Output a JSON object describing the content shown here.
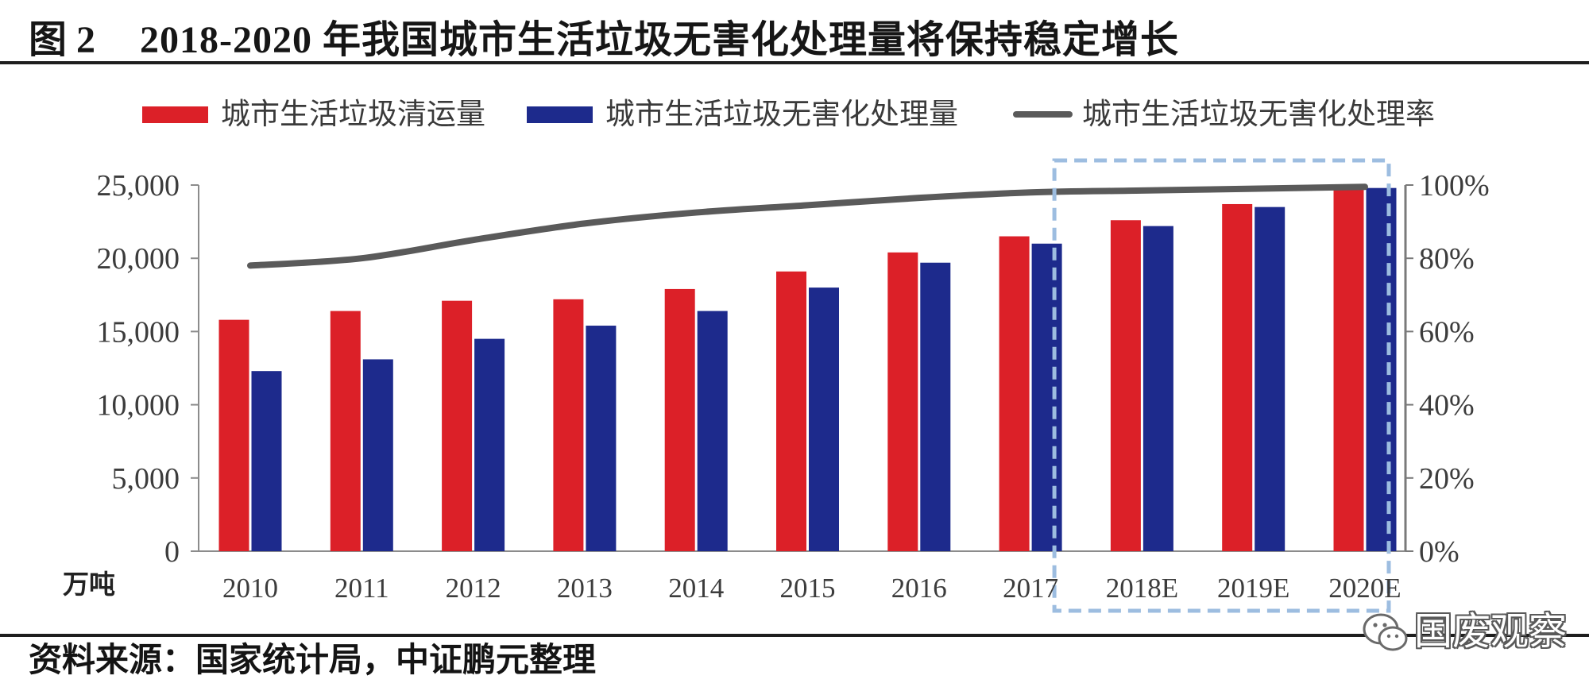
{
  "figure_label": "图 2",
  "source": "资料来源：国家统计局，中证鹏元整理",
  "watermark": "国废观察",
  "watermark_icon": "wechat-icon",
  "colors": {
    "highlight_box": "#9dbde0",
    "rules": "#1e1e1e",
    "axis": "#8c8c8c"
  },
  "chart_data": {
    "type": "bar",
    "title": "2018-2020 年我国城市生活垃圾无害化处理量将保持稳定增长",
    "categories": [
      "2010",
      "2011",
      "2012",
      "2013",
      "2014",
      "2015",
      "2016",
      "2017",
      "2018E",
      "2019E",
      "2020E"
    ],
    "series": [
      {
        "name": "城市生活垃圾清运量",
        "type": "bar",
        "axis": "left",
        "color": "#dc2028",
        "values": [
          15800,
          16400,
          17100,
          17200,
          17900,
          19100,
          20400,
          21500,
          22600,
          23700,
          24900
        ]
      },
      {
        "name": "城市生活垃圾无害化处理量",
        "type": "bar",
        "axis": "left",
        "color": "#1d2a8c",
        "values": [
          12300,
          13100,
          14500,
          15400,
          16400,
          18000,
          19700,
          21000,
          22200,
          23500,
          24800
        ]
      },
      {
        "name": "城市生活垃圾无害化处理率",
        "type": "line",
        "axis": "right",
        "color": "#5a5a5a",
        "values": [
          78,
          80,
          85,
          89.5,
          92.5,
          94.5,
          96.5,
          98,
          98.5,
          99,
          99.5
        ]
      }
    ],
    "ylabel": "万吨",
    "ylim": [
      0,
      25000
    ],
    "yticks": [
      0,
      5000,
      10000,
      15000,
      20000,
      25000
    ],
    "ytick_labels": [
      "0",
      "5,000",
      "10,000",
      "15,000",
      "20,000",
      "25,000"
    ],
    "y2lim": [
      0,
      100
    ],
    "y2ticks": [
      0,
      20,
      40,
      60,
      80,
      100
    ],
    "y2tick_labels": [
      "0%",
      "20%",
      "40%",
      "60%",
      "80%",
      "100%"
    ],
    "legend": "top",
    "grid": false
  }
}
